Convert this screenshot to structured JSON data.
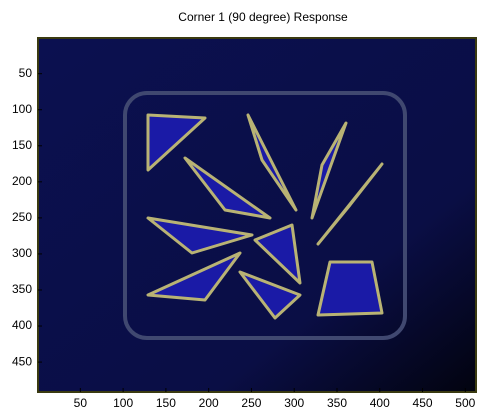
{
  "chart_data": {
    "type": "image",
    "title": "Corner 1 (90 degree) Response",
    "xlim": [
      0.5,
      512.5
    ],
    "xticks": [
      50,
      100,
      150,
      200,
      250,
      300,
      350,
      400,
      450,
      500
    ],
    "ylim": [
      0.5,
      491.5
    ],
    "yticks": [
      50,
      100,
      150,
      200,
      250,
      300,
      350,
      400,
      450
    ],
    "y_reversed": true
  }
}
